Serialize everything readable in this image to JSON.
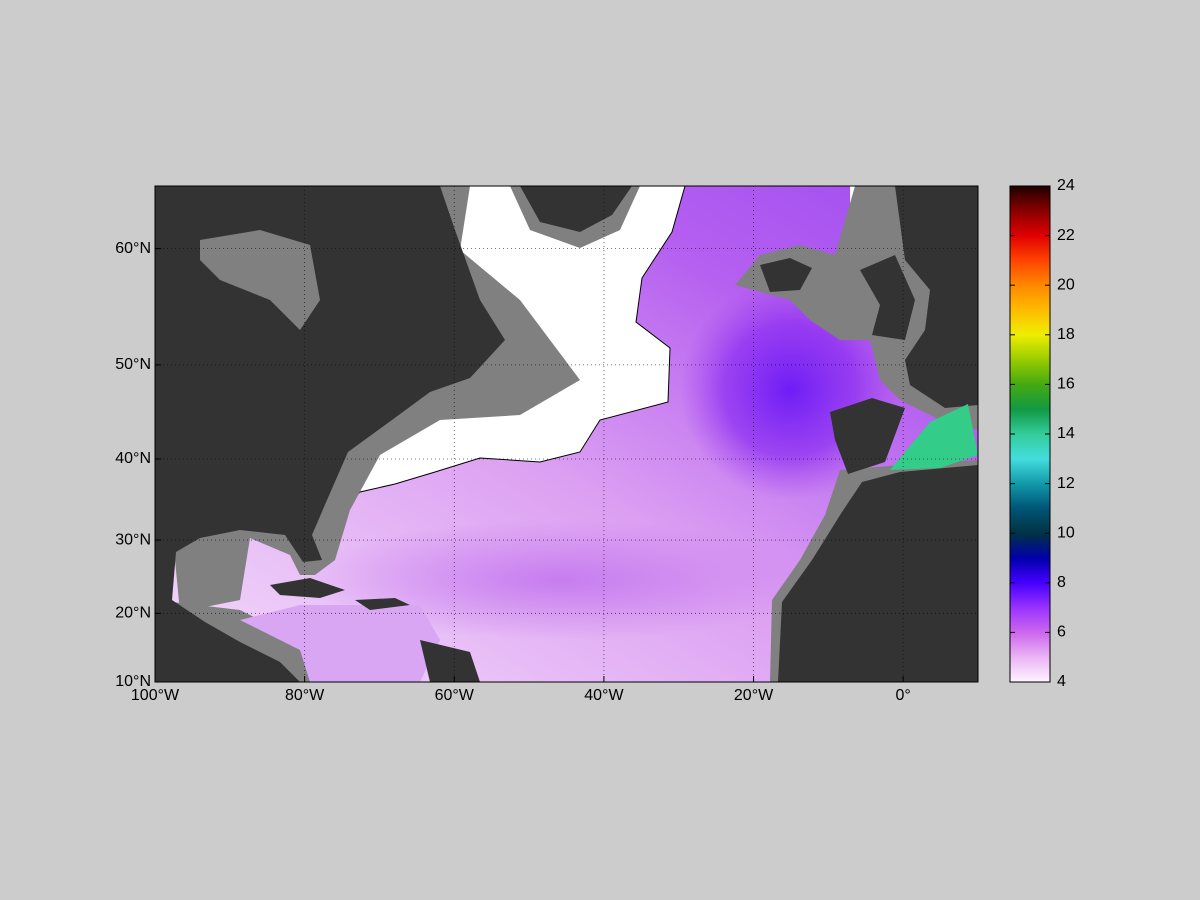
{
  "map": {
    "xlim": [
      -100,
      10
    ],
    "ylim": [
      10,
      64.4
    ],
    "xticks": [
      {
        "value": -100,
        "label": "100°W"
      },
      {
        "value": -80,
        "label": "80°W"
      },
      {
        "value": -60,
        "label": "60°W"
      },
      {
        "value": -40,
        "label": "40°W"
      },
      {
        "value": -20,
        "label": "20°W"
      },
      {
        "value": 0,
        "label": "0°"
      }
    ],
    "yticks": [
      {
        "value": 10,
        "label": "10°N"
      },
      {
        "value": 20,
        "label": "20°N"
      },
      {
        "value": 30,
        "label": "30°N"
      },
      {
        "value": 40,
        "label": "40°N"
      },
      {
        "value": 50,
        "label": "50°N"
      },
      {
        "value": 60,
        "label": "60°N"
      }
    ],
    "grid": true,
    "colorbar": {
      "lim": [
        4,
        24
      ],
      "ticks": [
        4,
        6,
        8,
        10,
        12,
        14,
        16,
        18,
        20,
        22,
        24
      ]
    }
  }
}
